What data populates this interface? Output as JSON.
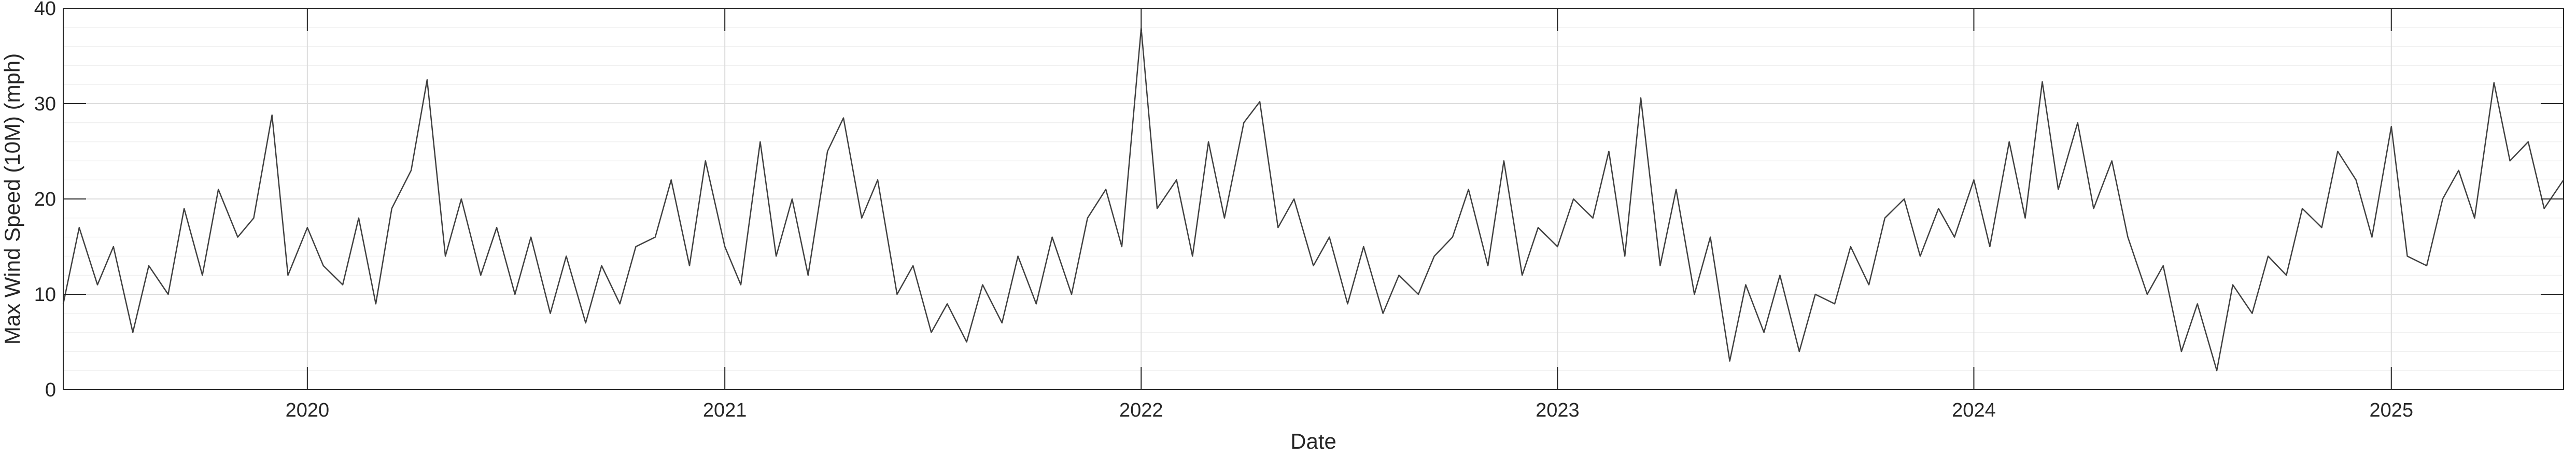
{
  "chart_data": {
    "type": "line",
    "title": "",
    "xlabel": "Date",
    "ylabel": "Max Wind Speed (10M) (mph)",
    "xlim": [
      "2019-06-01",
      "2025-06-01"
    ],
    "ylim": [
      0,
      40
    ],
    "y_ticks": [
      0,
      10,
      20,
      30,
      40
    ],
    "x_ticks": [
      {
        "date": "2020-01-01",
        "label": "2020"
      },
      {
        "date": "2021-01-01",
        "label": "2021"
      },
      {
        "date": "2022-01-01",
        "label": "2022"
      },
      {
        "date": "2023-01-01",
        "label": "2023"
      },
      {
        "date": "2024-01-01",
        "label": "2024"
      },
      {
        "date": "2025-01-01",
        "label": "2025"
      }
    ],
    "grid": true,
    "minor_grid_y": true,
    "line_color": "#404040",
    "series": [
      {
        "name": "",
        "x": [
          "2019-06-01",
          "2019-06-15",
          "2019-07-01",
          "2019-07-15",
          "2019-08-01",
          "2019-08-15",
          "2019-09-01",
          "2019-09-15",
          "2019-10-01",
          "2019-10-15",
          "2019-11-01",
          "2019-11-15",
          "2019-12-01",
          "2019-12-15",
          "2020-01-01",
          "2020-01-15",
          "2020-02-01",
          "2020-02-15",
          "2020-03-01",
          "2020-03-15",
          "2020-04-01",
          "2020-04-15",
          "2020-05-01",
          "2020-05-15",
          "2020-06-01",
          "2020-06-15",
          "2020-07-01",
          "2020-07-15",
          "2020-08-01",
          "2020-08-15",
          "2020-09-01",
          "2020-09-15",
          "2020-10-01",
          "2020-10-15",
          "2020-11-01",
          "2020-11-15",
          "2020-12-01",
          "2020-12-15",
          "2021-01-01",
          "2021-01-15",
          "2021-02-01",
          "2021-02-15",
          "2021-03-01",
          "2021-03-15",
          "2021-04-01",
          "2021-04-15",
          "2021-05-01",
          "2021-05-15",
          "2021-06-01",
          "2021-06-15",
          "2021-07-01",
          "2021-07-15",
          "2021-08-01",
          "2021-08-15",
          "2021-09-01",
          "2021-09-15",
          "2021-10-01",
          "2021-10-15",
          "2021-11-01",
          "2021-11-15",
          "2021-12-01",
          "2021-12-15",
          "2022-01-01",
          "2022-01-15",
          "2022-02-01",
          "2022-02-15",
          "2022-03-01",
          "2022-03-15",
          "2022-04-01",
          "2022-04-15",
          "2022-05-01",
          "2022-05-15",
          "2022-06-01",
          "2022-06-15",
          "2022-07-01",
          "2022-07-15",
          "2022-08-01",
          "2022-08-15",
          "2022-09-01",
          "2022-09-15",
          "2022-10-01",
          "2022-10-15",
          "2022-11-01",
          "2022-11-15",
          "2022-12-01",
          "2022-12-15",
          "2023-01-01",
          "2023-01-15",
          "2023-02-01",
          "2023-02-15",
          "2023-03-01",
          "2023-03-15",
          "2023-04-01",
          "2023-04-15",
          "2023-05-01",
          "2023-05-15",
          "2023-06-01",
          "2023-06-15",
          "2023-07-01",
          "2023-07-15",
          "2023-08-01",
          "2023-08-15",
          "2023-09-01",
          "2023-09-15",
          "2023-10-01",
          "2023-10-15",
          "2023-11-01",
          "2023-11-15",
          "2023-12-01",
          "2023-12-15",
          "2024-01-01",
          "2024-01-15",
          "2024-02-01",
          "2024-02-15",
          "2024-03-01",
          "2024-03-15",
          "2024-04-01",
          "2024-04-15",
          "2024-05-01",
          "2024-05-15",
          "2024-06-01",
          "2024-06-15",
          "2024-07-01",
          "2024-07-15",
          "2024-08-01",
          "2024-08-15",
          "2024-09-01",
          "2024-09-15",
          "2024-10-01",
          "2024-10-15",
          "2024-11-01",
          "2024-11-15",
          "2024-12-01",
          "2024-12-15",
          "2025-01-01",
          "2025-01-15",
          "2025-02-01",
          "2025-02-15",
          "2025-03-01",
          "2025-03-15",
          "2025-04-01",
          "2025-04-15",
          "2025-05-01",
          "2025-05-15",
          "2025-06-01"
        ],
        "y": [
          9,
          17,
          11,
          15,
          6,
          13,
          10,
          19,
          12,
          21,
          16,
          18,
          28.8,
          12,
          17,
          13,
          11,
          18,
          9,
          19,
          23,
          32.5,
          14,
          20,
          12,
          17,
          10,
          16,
          8,
          14,
          7,
          13,
          9,
          15,
          16,
          22,
          13,
          24,
          15,
          11,
          26,
          14,
          20,
          12,
          25,
          28.5,
          18,
          22,
          10,
          13,
          6,
          9,
          5,
          11,
          7,
          14,
          9,
          16,
          10,
          18,
          21,
          15,
          37.9,
          19,
          22,
          14,
          26,
          18,
          28,
          30.2,
          17,
          20,
          13,
          16,
          9,
          15,
          8,
          12,
          10,
          14,
          16,
          21,
          13,
          24,
          12,
          17,
          15,
          20,
          18,
          25,
          14,
          30.6,
          13,
          21,
          10,
          16,
          3,
          11,
          6,
          12,
          4,
          10,
          9,
          15,
          11,
          18,
          20,
          14,
          19,
          16,
          22,
          15,
          26,
          18,
          32.3,
          21,
          28,
          19,
          24,
          16,
          10,
          13,
          4,
          9,
          2,
          11,
          8,
          14,
          12,
          19,
          17,
          25,
          22,
          16,
          27.6,
          14,
          13,
          20,
          23,
          18,
          32.2,
          24,
          26,
          19,
          22
        ]
      }
    ]
  }
}
